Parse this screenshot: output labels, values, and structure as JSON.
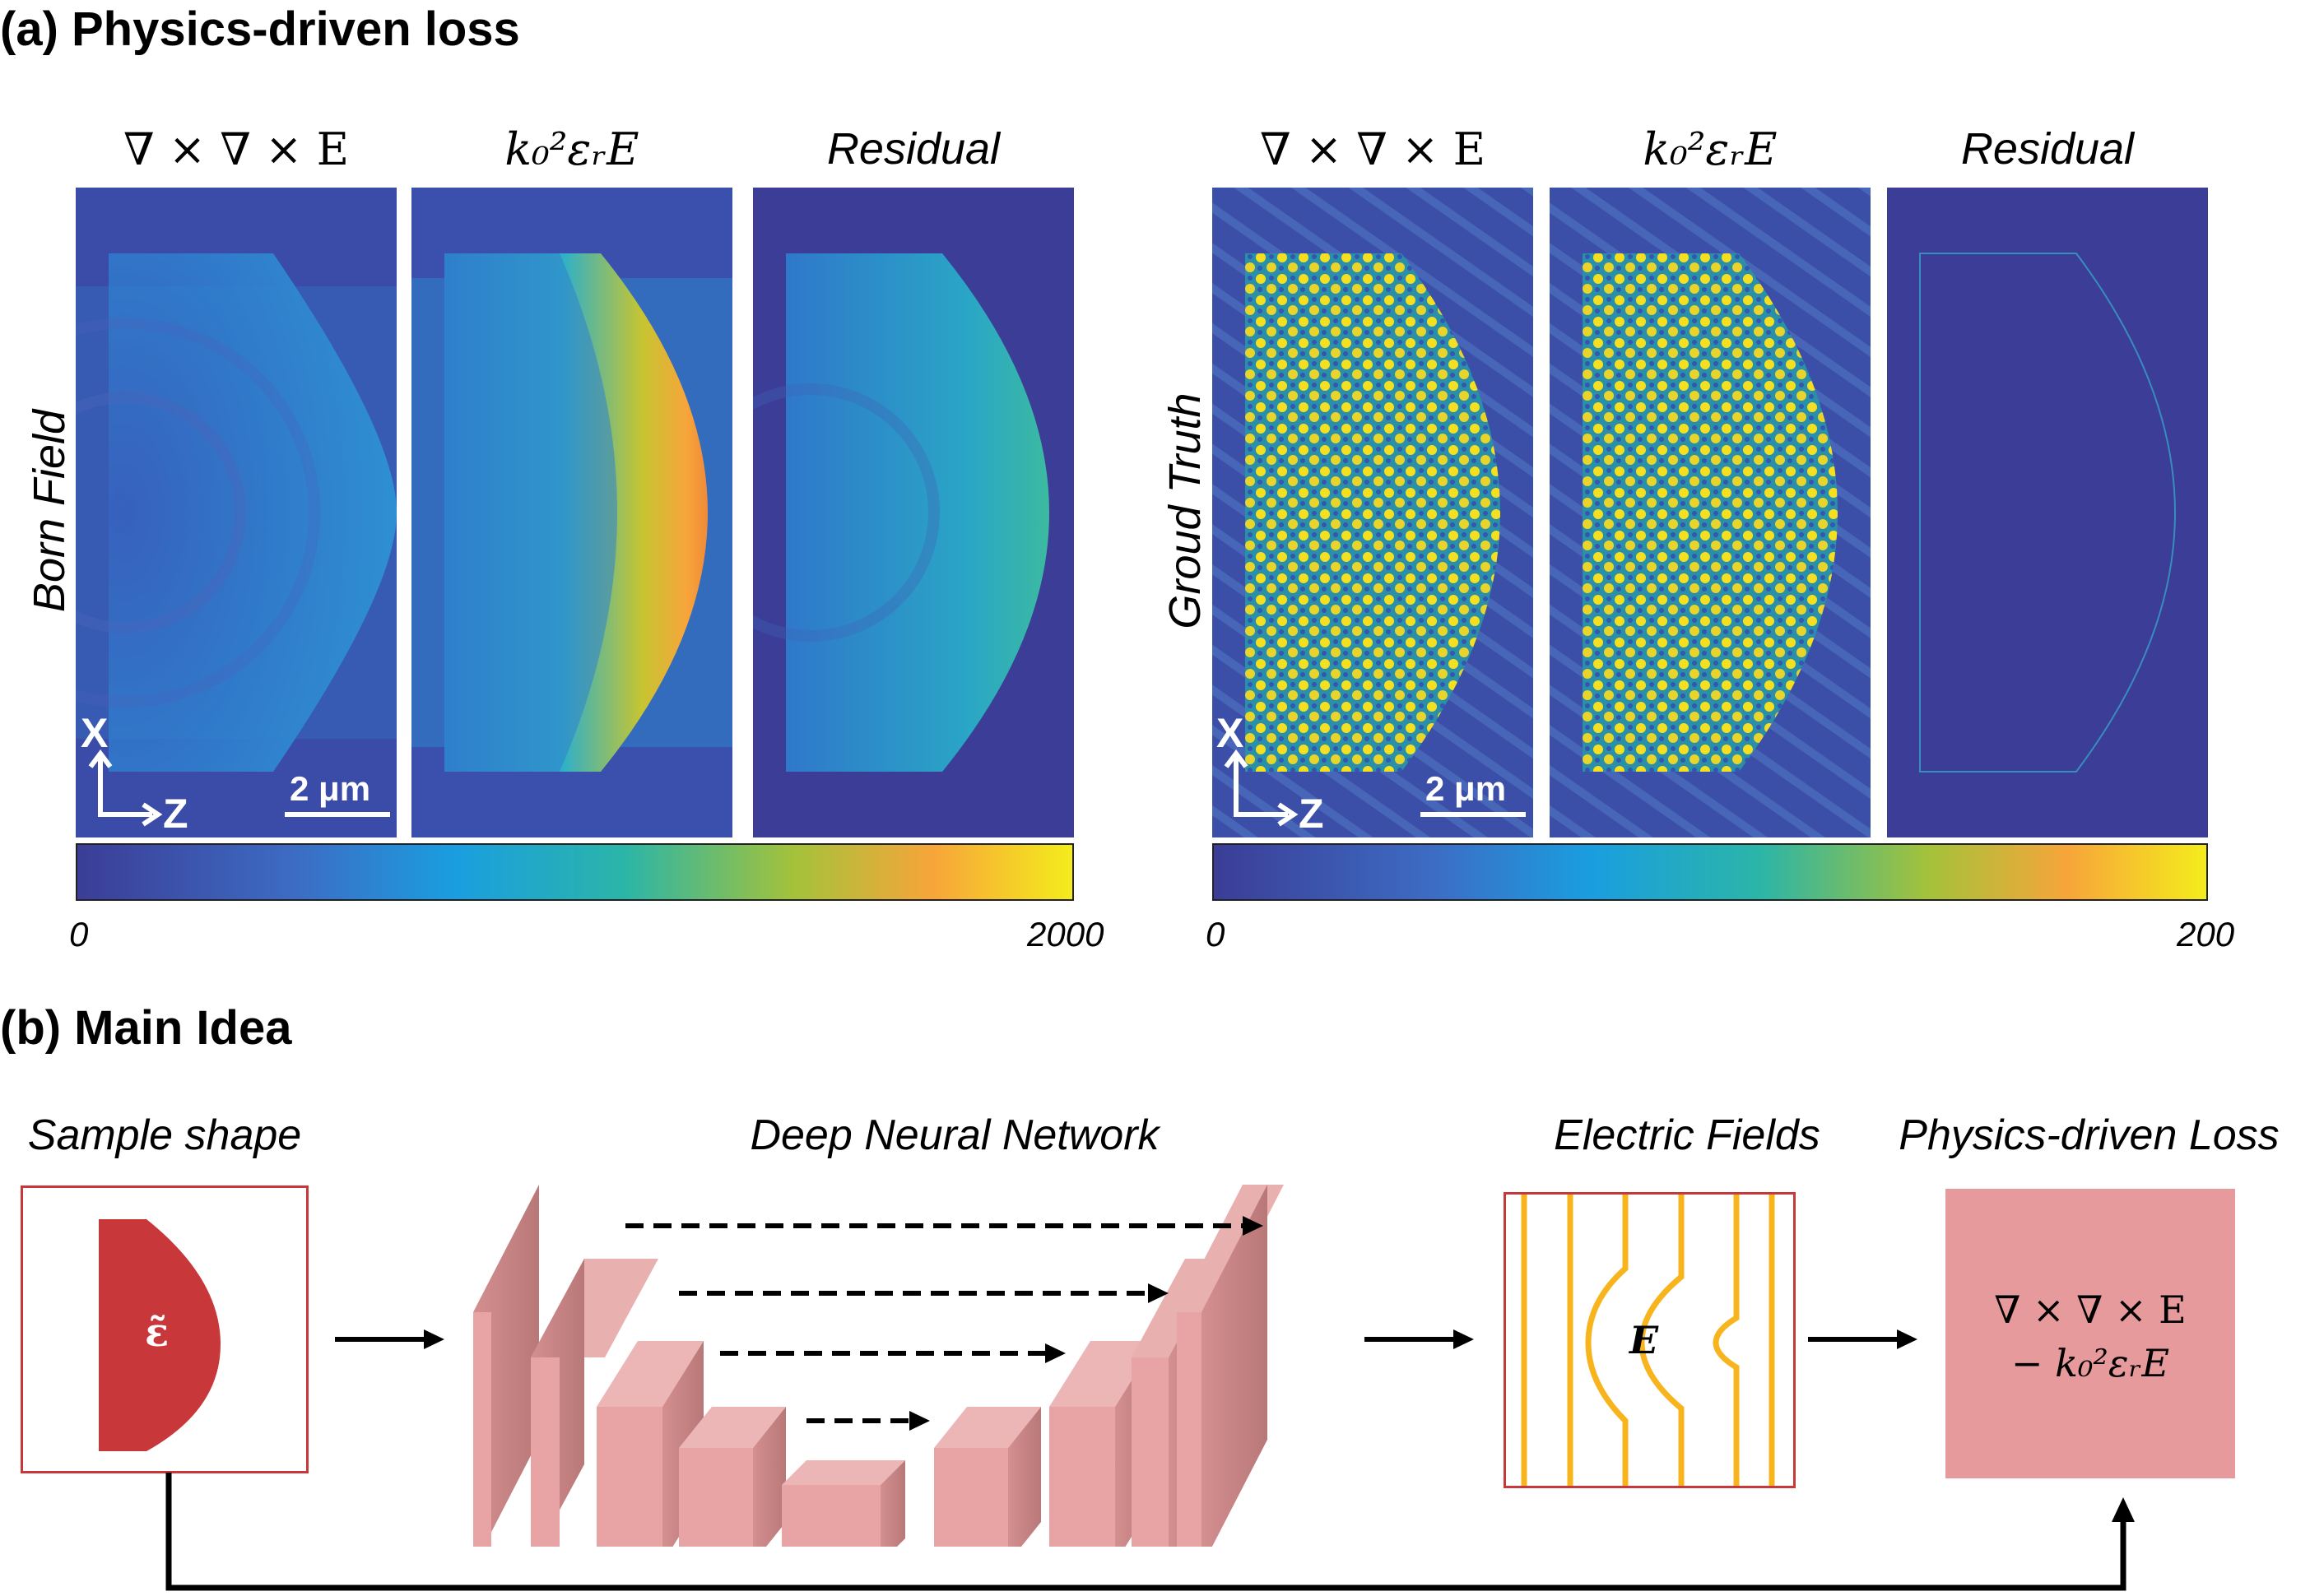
{
  "section_a": {
    "title": "(a) Physics-driven loss",
    "left_group": {
      "row_label": "Born Field",
      "headers": [
        "∇ × ∇ × E",
        "k₀²εᵣE",
        "Residual"
      ],
      "scalebar": "2 μm",
      "axis_x": "X",
      "axis_z": "Z",
      "colorbar_min": "0",
      "colorbar_max": "2000"
    },
    "right_group": {
      "row_label": "Groud Truth",
      "headers": [
        "∇ × ∇ × E",
        "k₀²εᵣE",
        "Residual"
      ],
      "scalebar": "2 μm",
      "axis_x": "X",
      "axis_z": "Z",
      "colorbar_min": "0",
      "colorbar_max": "200"
    }
  },
  "section_b": {
    "title": "(b) Main Idea",
    "stages": {
      "sample": "Sample shape",
      "network": "Deep Neural Network",
      "fields": "Electric Fields",
      "loss": "Physics-driven Loss"
    },
    "sample_symbol": "ε̃",
    "field_symbol": "E",
    "loss_line1": "∇ × ∇ × E",
    "loss_line2": "− k₀²εᵣE"
  },
  "colors": {
    "cmap_dark": "#3b3d96",
    "cmap_blue": "#1a9ee0",
    "cmap_teal": "#2bb5a8",
    "cmap_yellow": "#f9e51c",
    "cmap_orange": "#f7a53a",
    "sample_red": "#c8373a",
    "net_pink": "#e8a4a4",
    "loss_pink": "#e79a9c",
    "field_orange": "#f7b41c"
  }
}
